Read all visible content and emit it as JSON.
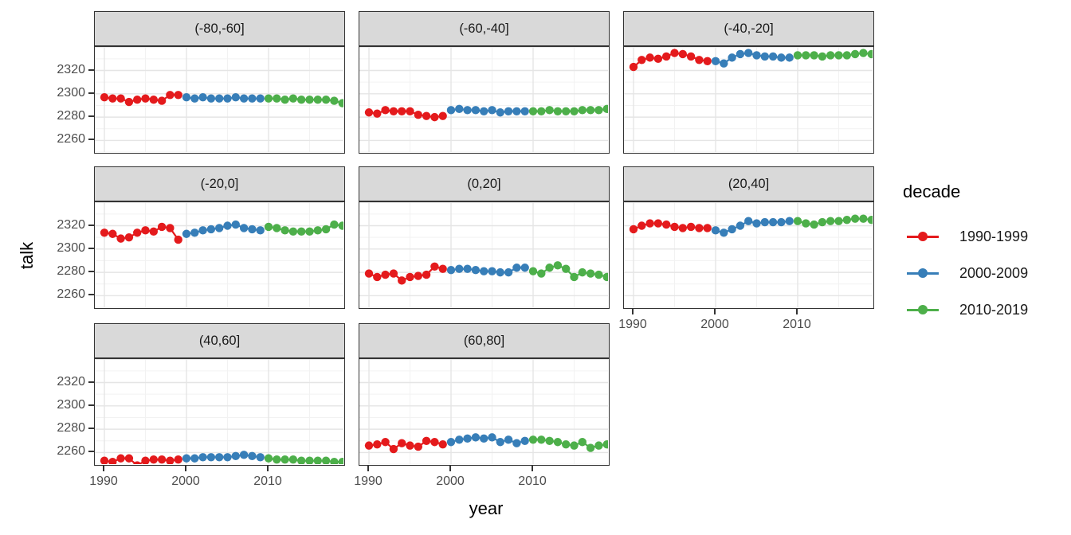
{
  "chart_data": {
    "type": "line",
    "title": "",
    "xlabel": "year",
    "ylabel": "talk",
    "x_ticks": [
      1990,
      2000,
      2010
    ],
    "y_ticks": [
      2260,
      2280,
      2300,
      2320
    ],
    "y_minor_ticks": [
      2250,
      2270,
      2290,
      2310,
      2330
    ],
    "x_minor_ticks": [
      1995,
      2005,
      2015
    ],
    "x_domain": [
      1988.8,
      2019.4
    ],
    "y_domain": [
      2247.5,
      2340.0
    ],
    "grid": true,
    "years": [
      1990,
      1991,
      1992,
      1993,
      1994,
      1995,
      1996,
      1997,
      1998,
      1999,
      2000,
      2001,
      2002,
      2003,
      2004,
      2005,
      2006,
      2007,
      2008,
      2009,
      2010,
      2011,
      2012,
      2013,
      2014,
      2015,
      2016,
      2017,
      2018,
      2019
    ],
    "legend": {
      "title": "decade",
      "position": "right",
      "entries": [
        {
          "label": "1990-1999",
          "color": "#E41A1C"
        },
        {
          "label": "2000-2009",
          "color": "#377EB8"
        },
        {
          "label": "2010-2019",
          "color": "#4DAF4A"
        }
      ]
    },
    "facets": [
      {
        "label": "(-80,-60]",
        "values": [
          2297,
          2296,
          2296,
          2293,
          2295,
          2296,
          2295,
          2294,
          2299,
          2299,
          2297,
          2296,
          2297,
          2296,
          2296,
          2296,
          2297,
          2296,
          2296,
          2296,
          2296,
          2296,
          2295,
          2296,
          2295,
          2295,
          2295,
          2295,
          2294,
          2292
        ]
      },
      {
        "label": "(-60,-40]",
        "values": [
          2284,
          2283,
          2286,
          2285,
          2285,
          2285,
          2282,
          2281,
          2280,
          2281,
          2286,
          2287,
          2286,
          2286,
          2285,
          2286,
          2284,
          2285,
          2285,
          2285,
          2285,
          2285,
          2286,
          2285,
          2285,
          2285,
          2286,
          2286,
          2286,
          2287
        ]
      },
      {
        "label": "(-40,-20]",
        "values": [
          2323,
          2329,
          2331,
          2330,
          2332,
          2335,
          2334,
          2332,
          2329,
          2328,
          2328,
          2326,
          2331,
          2334,
          2335,
          2333,
          2332,
          2332,
          2331,
          2331,
          2333,
          2333,
          2333,
          2332,
          2333,
          2333,
          2333,
          2334,
          2335,
          2334
        ]
      },
      {
        "label": "(-20,0]",
        "values": [
          2314,
          2313,
          2309,
          2310,
          2314,
          2316,
          2315,
          2319,
          2318,
          2308,
          2313,
          2314,
          2316,
          2317,
          2318,
          2320,
          2321,
          2318,
          2317,
          2316,
          2319,
          2318,
          2316,
          2315,
          2315,
          2315,
          2316,
          2317,
          2321,
          2320
        ]
      },
      {
        "label": "(0,20]",
        "values": [
          2279,
          2276,
          2278,
          2279,
          2273,
          2276,
          2277,
          2278,
          2285,
          2283,
          2282,
          2283,
          2283,
          2282,
          2281,
          2281,
          2280,
          2280,
          2284,
          2284,
          2281,
          2279,
          2284,
          2286,
          2283,
          2276,
          2280,
          2279,
          2278,
          2276
        ]
      },
      {
        "label": "(20,40]",
        "values": [
          2317,
          2320,
          2322,
          2322,
          2321,
          2319,
          2318,
          2319,
          2318,
          2318,
          2316,
          2314,
          2317,
          2320,
          2324,
          2322,
          2323,
          2323,
          2323,
          2324,
          2324,
          2322,
          2321,
          2323,
          2324,
          2324,
          2325,
          2326,
          2326,
          2325
        ]
      },
      {
        "label": "(40,60]",
        "values": [
          2253,
          2252,
          2255,
          2255,
          2249,
          2253,
          2254,
          2254,
          2253,
          2254,
          2255,
          2255,
          2256,
          2256,
          2256,
          2256,
          2257,
          2258,
          2257,
          2256,
          2255,
          2254,
          2254,
          2254,
          2253,
          2253,
          2253,
          2253,
          2252,
          2252
        ]
      },
      {
        "label": "(60,80]",
        "values": [
          2266,
          2267,
          2269,
          2263,
          2268,
          2266,
          2265,
          2270,
          2269,
          2267,
          2269,
          2271,
          2272,
          2273,
          2272,
          2273,
          2269,
          2271,
          2268,
          2270,
          2271,
          2271,
          2270,
          2269,
          2267,
          2266,
          2269,
          2264,
          2266,
          2267
        ]
      }
    ],
    "colors": {
      "strip_background": "#d9d9d9",
      "panel_border": "#333333",
      "grid_major": "#e5e5e5",
      "grid_minor": "#f2f2f2",
      "tick_text": "#4d4d4d"
    }
  }
}
